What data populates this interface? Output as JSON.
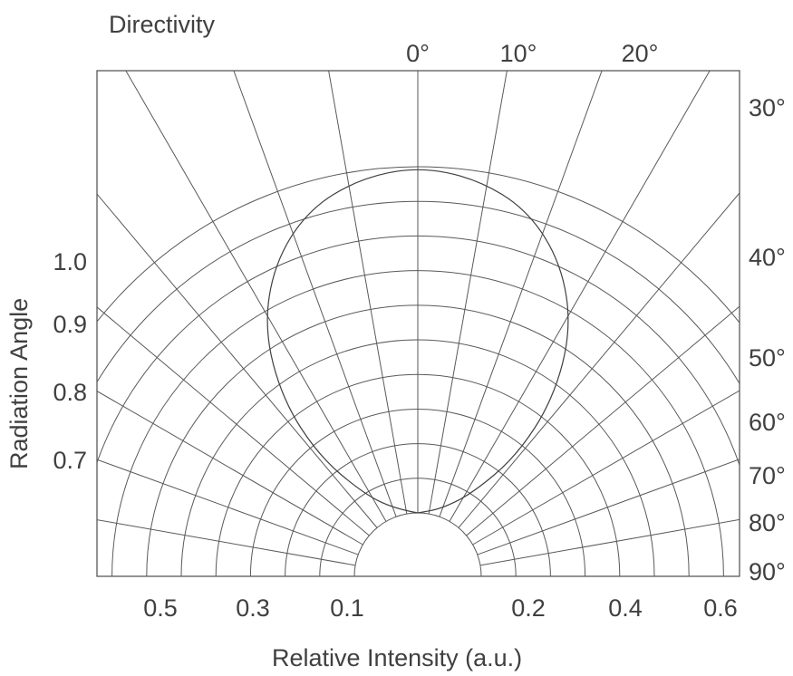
{
  "chart_data": {
    "type": "polar",
    "title": "Directivity",
    "xlabel": "Relative Intensity (a.u.)",
    "ylabel": "Radiation Angle",
    "angle_ticks_top": [
      "0°",
      "10°",
      "20°"
    ],
    "angle_ticks_right": [
      "30°",
      "40°",
      "50°",
      "60°",
      "70°",
      "80°",
      "90°"
    ],
    "radius_ticks_left": [
      "1.0",
      "0.9",
      "0.8",
      "0.7"
    ],
    "x_ticks": [
      "0.5",
      "0.3",
      "0.1",
      "0.2",
      "0.4",
      "0.6"
    ],
    "radial_angles_deg": [
      0,
      10,
      20,
      30,
      40,
      50,
      60,
      70,
      80,
      90
    ],
    "ring_radii": [
      0.1,
      0.2,
      0.3,
      0.4,
      0.5,
      0.6,
      0.7,
      0.8,
      0.9,
      1.0
    ],
    "grid": true,
    "series": [
      {
        "angle_deg": [
          0,
          10,
          20,
          30,
          40,
          50,
          60,
          70,
          80,
          90
        ],
        "values": [
          1.0,
          0.98,
          0.93,
          0.83,
          0.69,
          0.51,
          0.33,
          0.17,
          0.07,
          0.0
        ]
      }
    ]
  }
}
